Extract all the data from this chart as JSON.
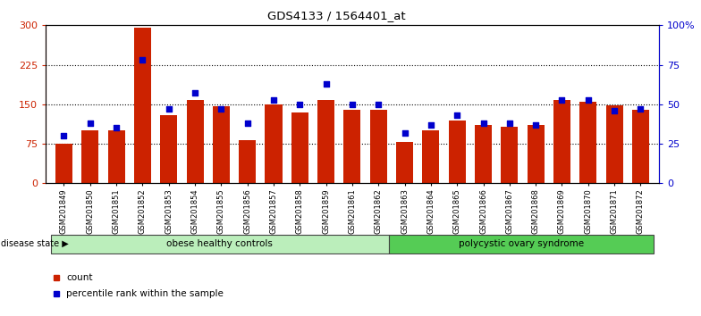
{
  "title": "GDS4133 / 1564401_at",
  "samples": [
    "GSM201849",
    "GSM201850",
    "GSM201851",
    "GSM201852",
    "GSM201853",
    "GSM201854",
    "GSM201855",
    "GSM201856",
    "GSM201857",
    "GSM201858",
    "GSM201859",
    "GSM201861",
    "GSM201862",
    "GSM201863",
    "GSM201864",
    "GSM201865",
    "GSM201866",
    "GSM201867",
    "GSM201868",
    "GSM201869",
    "GSM201870",
    "GSM201871",
    "GSM201872"
  ],
  "counts": [
    75,
    100,
    100,
    295,
    130,
    158,
    147,
    82,
    150,
    135,
    158,
    140,
    140,
    78,
    100,
    120,
    110,
    108,
    110,
    158,
    155,
    148,
    140
  ],
  "percentiles": [
    30,
    38,
    35,
    78,
    47,
    57,
    47,
    38,
    53,
    50,
    63,
    50,
    50,
    32,
    37,
    43,
    38,
    38,
    37,
    53,
    53,
    46,
    47
  ],
  "group1_label": "obese healthy controls",
  "group1_count": 13,
  "group2_label": "polycystic ovary syndrome",
  "disease_state_label": "disease state",
  "bar_color": "#cc2200",
  "dot_color": "#0000cc",
  "ylim_left": [
    0,
    300
  ],
  "ylim_right": [
    0,
    100
  ],
  "yticks_left": [
    0,
    75,
    150,
    225,
    300
  ],
  "yticks_right": [
    0,
    25,
    50,
    75,
    100
  ],
  "ytick_labels_right": [
    "0",
    "25",
    "50",
    "75",
    "100%"
  ],
  "gridline_vals": [
    75,
    150,
    225
  ],
  "bg_color": "#ffffff",
  "group1_color": "#bbeebb",
  "group2_color": "#55cc55",
  "legend_count_label": "count",
  "legend_pct_label": "percentile rank within the sample"
}
